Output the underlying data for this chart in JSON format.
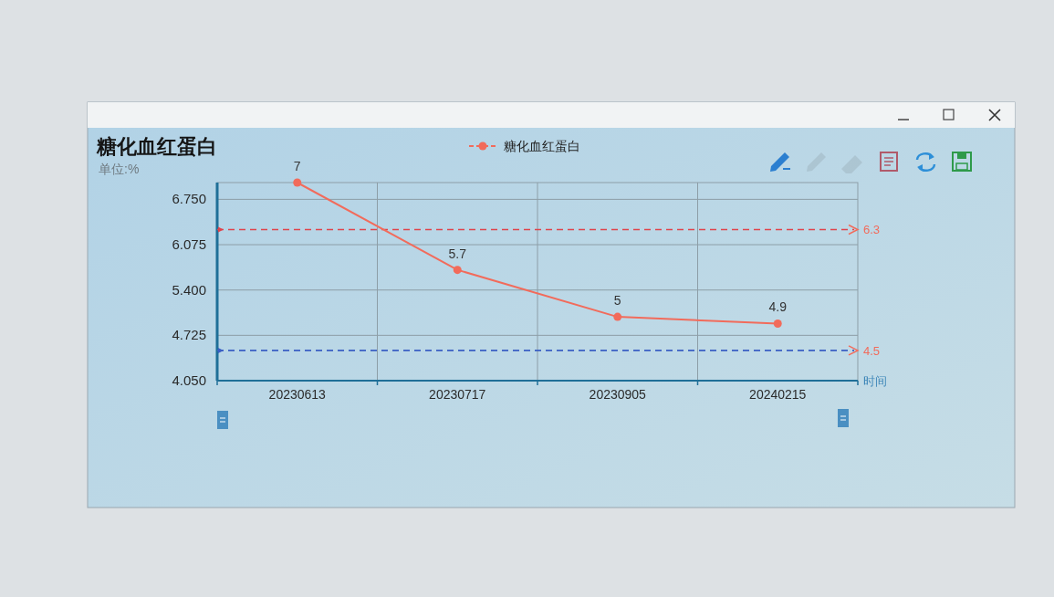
{
  "chart_data": {
    "type": "line",
    "title": "糖化血红蛋白",
    "subtitle": "单位:%",
    "xlabel": "时间",
    "categories": [
      "20230613",
      "20230717",
      "20230905",
      "20240215"
    ],
    "series": [
      {
        "name": "糖化血红蛋白",
        "color": "#f26b5b",
        "values": [
          7,
          5.7,
          5,
          4.9
        ]
      }
    ],
    "ylim": [
      4.05,
      7
    ],
    "yticks": [
      {
        "value": 4.05,
        "label": "4.050"
      },
      {
        "value": 4.725,
        "label": "4.725"
      },
      {
        "value": 5.4,
        "label": "5.400"
      },
      {
        "value": 6.075,
        "label": "6.075"
      },
      {
        "value": 6.75,
        "label": "6.750"
      }
    ],
    "ref_lines": [
      {
        "axis": "y",
        "value": 6.3,
        "label": "6.3",
        "color": "#e0434b",
        "line_style": "dashed"
      },
      {
        "axis": "y",
        "value": 4.5,
        "label": "4.5",
        "color": "#3a5fc4",
        "line_style": "dashed"
      }
    ],
    "grid": true,
    "legend": "top",
    "marker": "circle",
    "line_style": "solid",
    "data_labels": true
  }
}
